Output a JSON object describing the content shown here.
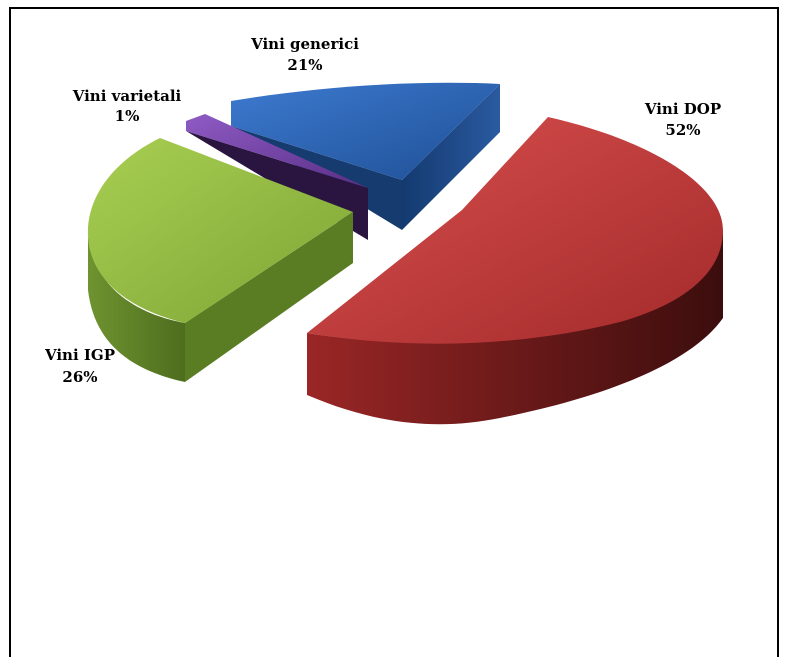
{
  "chart_data": {
    "type": "pie",
    "variant": "3d-exploded",
    "title": "",
    "legend": "none",
    "slices": [
      {
        "name": "Vini DOP",
        "value": 52,
        "label": "52%",
        "color": "#c0393b"
      },
      {
        "name": "Vini generici",
        "value": 21,
        "label": "21%",
        "color": "#2e64b0"
      },
      {
        "name": "Vini varietali",
        "value": 1,
        "label": "1%",
        "color": "#6a3d9a"
      },
      {
        "name": "Vini IGP",
        "value": 26,
        "label": "26%",
        "color": "#8db53b"
      }
    ]
  }
}
